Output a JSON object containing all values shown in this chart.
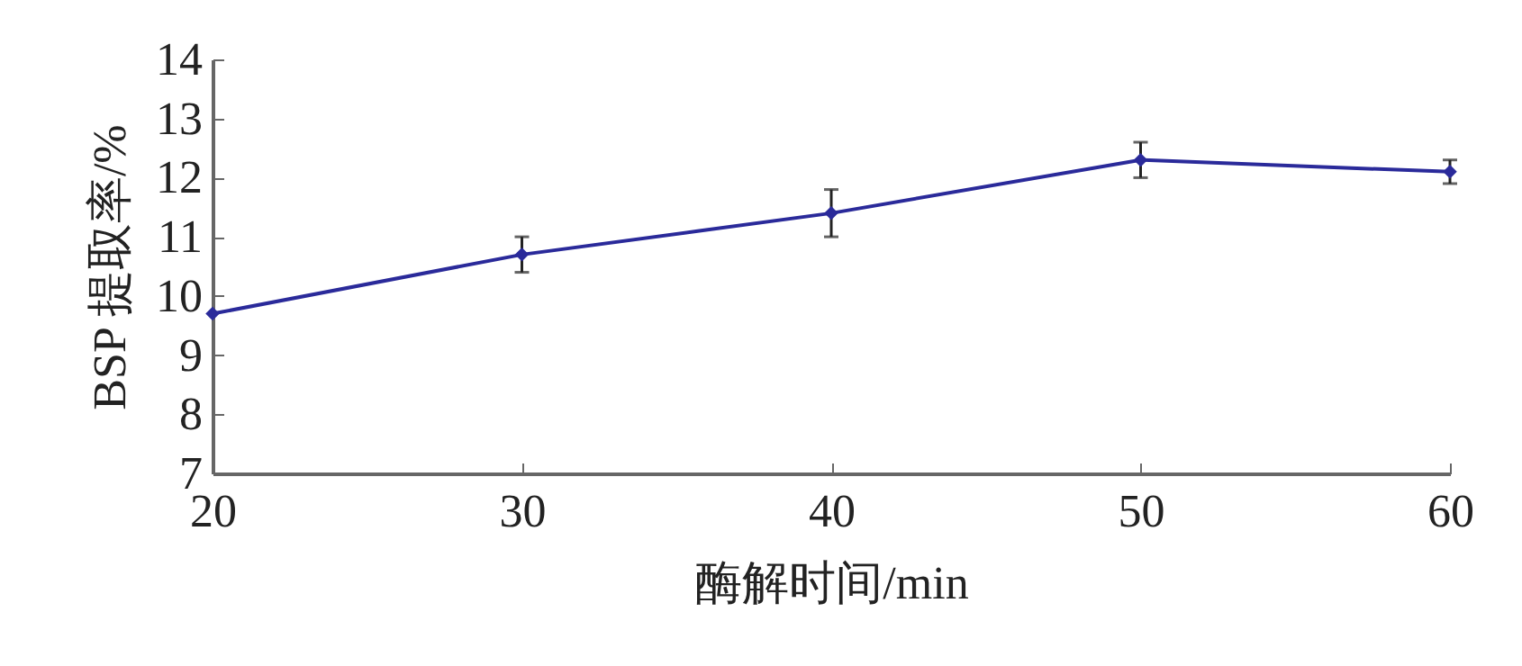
{
  "chart_data": {
    "type": "line",
    "xlabel": "酶解时间/min",
    "ylabel": "BSP 提取率/%",
    "x": [
      20,
      30,
      40,
      50,
      60
    ],
    "series": [
      {
        "color": "#2a2a9a",
        "values": [
          9.7,
          10.7,
          11.4,
          12.3,
          12.1
        ],
        "errors": [
          null,
          0.3,
          0.4,
          0.3,
          0.2
        ]
      }
    ],
    "xlim": [
      20,
      60
    ],
    "xticks": [
      20,
      30,
      40,
      50,
      60
    ],
    "ylim": [
      7,
      14
    ],
    "yticks": [
      7,
      8,
      9,
      10,
      11,
      12,
      13,
      14
    ],
    "grid": false,
    "marker": "diamond",
    "line_style": "solid"
  }
}
